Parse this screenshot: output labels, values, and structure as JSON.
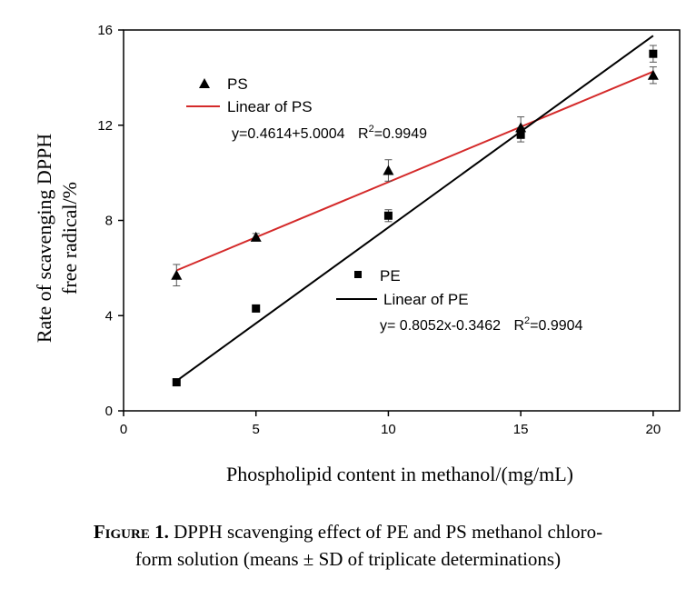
{
  "chart_data": {
    "type": "scatter",
    "xlabel": "Phospholipid content in methanol/(mg/mL)",
    "ylabel_line1": "Rate of scavenging DPPH",
    "ylabel_line2": "free radical/%",
    "xlim": [
      0,
      21
    ],
    "ylim": [
      0,
      16
    ],
    "x_ticks": [
      0,
      5,
      10,
      15,
      20
    ],
    "y_ticks": [
      0,
      4,
      8,
      12,
      16
    ],
    "grid": false,
    "series": [
      {
        "name": "PS",
        "marker": "triangle",
        "color": "#000000",
        "x": [
          2,
          5,
          10,
          15,
          20
        ],
        "y": [
          5.7,
          7.3,
          10.1,
          11.9,
          14.1
        ],
        "err": [
          0.45,
          0.15,
          0.45,
          0.45,
          0.35
        ]
      },
      {
        "name": "PE",
        "marker": "square",
        "color": "#000000",
        "x": [
          2,
          5,
          10,
          15,
          20
        ],
        "y": [
          1.2,
          4.3,
          8.2,
          11.6,
          15.0
        ],
        "err": [
          0,
          0,
          0.25,
          0.3,
          0.35
        ]
      }
    ],
    "fits": [
      {
        "name": "Linear of PS",
        "color": "#d42a2a",
        "x_range": [
          2,
          20
        ],
        "y_range": [
          5.9,
          14.25
        ],
        "equation": "y=0.4614+5.0004",
        "r2_base": "R",
        "r2_sup": "2",
        "r2_value": "=0.9949"
      },
      {
        "name": "Linear of PE",
        "color": "#000000",
        "x_range": [
          2,
          20
        ],
        "y_range": [
          1.26,
          15.76
        ],
        "equation": "y= 0.8052x-0.3462",
        "r2_base": "R",
        "r2_sup": "2",
        "r2_value": "=0.9904"
      }
    ]
  },
  "caption": {
    "label": "Figure",
    "number": "1.",
    "line1": "DPPH scavenging effect of PE and PS methanol chloro-",
    "line2": "form solution (means ± SD of triplicate determinations)"
  }
}
